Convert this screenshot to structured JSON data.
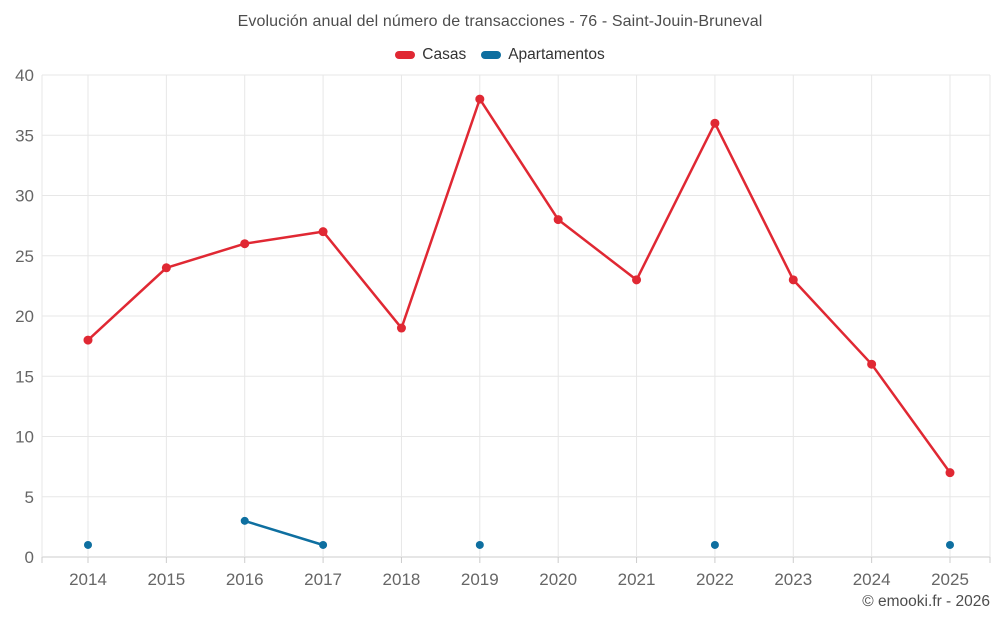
{
  "header": {
    "title": "Evolución anual del número de transacciones - 76 - Saint-Jouin-Bruneval",
    "legend": [
      {
        "label": "Casas",
        "color": "#e02833"
      },
      {
        "label": "Apartamentos",
        "color": "#0e6fa0"
      }
    ]
  },
  "footer": {
    "credit": "© emooki.fr - 2026"
  },
  "colors": {
    "grid": "#e7e7e7",
    "axis_line": "#cccccc",
    "tick": "#cccccc",
    "tick_label": "#666666",
    "casas": "#e02833",
    "apartamentos": "#0e6fa0"
  },
  "chart_data": {
    "type": "line",
    "title": "Evolución anual del número de transacciones - 76 - Saint-Jouin-Bruneval",
    "xlabel": "",
    "ylabel": "",
    "categories": [
      "2014",
      "2015",
      "2016",
      "2017",
      "2018",
      "2019",
      "2020",
      "2021",
      "2022",
      "2023",
      "2024",
      "2025"
    ],
    "series": [
      {
        "name": "Casas",
        "color": "#e02833",
        "marker_radius": 4.5,
        "values": [
          18,
          24,
          26,
          27,
          19,
          38,
          28,
          23,
          36,
          23,
          16,
          7
        ]
      },
      {
        "name": "Apartamentos",
        "color": "#0e6fa0",
        "marker_radius": 4,
        "values": [
          1,
          null,
          3,
          1,
          null,
          1,
          null,
          null,
          1,
          null,
          null,
          1
        ]
      }
    ],
    "ylim": [
      0,
      40
    ],
    "yticks": [
      0,
      5,
      10,
      15,
      20,
      25,
      30,
      35,
      40
    ],
    "grid": true,
    "legend_position": "top"
  }
}
